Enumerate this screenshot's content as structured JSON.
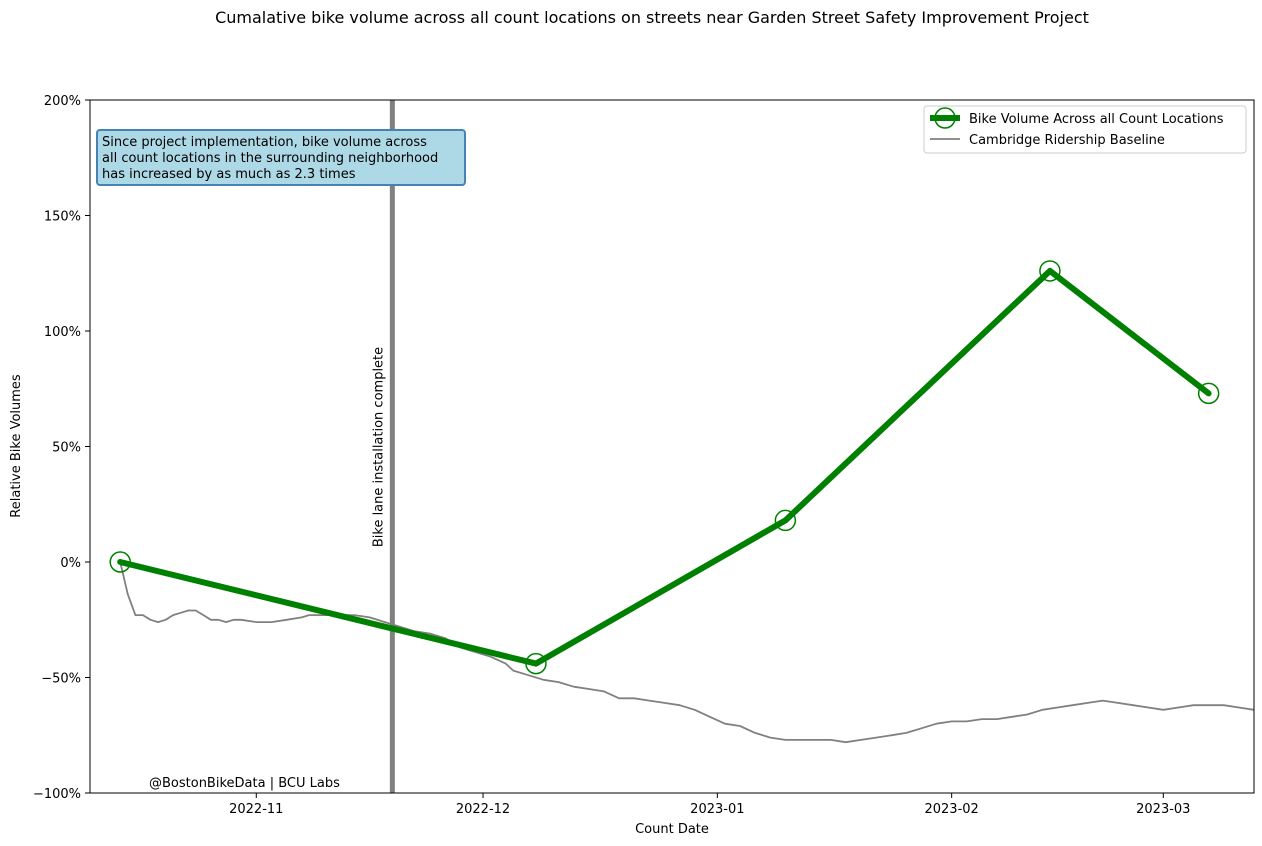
{
  "chart_data": {
    "type": "line",
    "title": "Cumalative bike volume across all count locations on streets near Garden Street Safety Improvement Project",
    "xlabel": "Count Date",
    "ylabel": "Relative Bike Volumes",
    "xlim": [
      "2022-10-10",
      "2023-03-13"
    ],
    "ylim": [
      -100,
      200
    ],
    "y_ticks": [
      -100,
      -50,
      0,
      50,
      100,
      150,
      200
    ],
    "y_tick_labels": [
      "−100%",
      "−50%",
      "0%",
      "50%",
      "100%",
      "150%",
      "200%"
    ],
    "x_ticks": [
      "2022-11-01",
      "2022-12-01",
      "2023-01-01",
      "2023-02-01",
      "2023-03-01"
    ],
    "x_tick_labels": [
      "2022-11",
      "2022-12",
      "2023-01",
      "2023-02",
      "2023-03"
    ],
    "legend_position": "top-right",
    "grid": false,
    "series": [
      {
        "name": "Bike Volume Across all Count Locations",
        "color": "#008000",
        "marker": "hollow-circle",
        "points": [
          {
            "x": "2022-10-14",
            "y": 0
          },
          {
            "x": "2022-12-08",
            "y": -44
          },
          {
            "x": "2023-01-10",
            "y": 18
          },
          {
            "x": "2023-02-14",
            "y": 126
          },
          {
            "x": "2023-03-07",
            "y": 73
          }
        ]
      },
      {
        "name": "Cambridge Ridership Baseline",
        "color": "#808080",
        "points": [
          {
            "x": "2022-10-14",
            "y": 0
          },
          {
            "x": "2022-10-15",
            "y": -14
          },
          {
            "x": "2022-10-16",
            "y": -23
          },
          {
            "x": "2022-10-17",
            "y": -23
          },
          {
            "x": "2022-10-18",
            "y": -25
          },
          {
            "x": "2022-10-19",
            "y": -26
          },
          {
            "x": "2022-10-20",
            "y": -25
          },
          {
            "x": "2022-10-21",
            "y": -23
          },
          {
            "x": "2022-10-22",
            "y": -22
          },
          {
            "x": "2022-10-23",
            "y": -21
          },
          {
            "x": "2022-10-24",
            "y": -21
          },
          {
            "x": "2022-10-25",
            "y": -23
          },
          {
            "x": "2022-10-26",
            "y": -25
          },
          {
            "x": "2022-10-27",
            "y": -25
          },
          {
            "x": "2022-10-28",
            "y": -26
          },
          {
            "x": "2022-10-29",
            "y": -25
          },
          {
            "x": "2022-10-30",
            "y": -25
          },
          {
            "x": "2022-11-01",
            "y": -26
          },
          {
            "x": "2022-11-03",
            "y": -26
          },
          {
            "x": "2022-11-05",
            "y": -25
          },
          {
            "x": "2022-11-07",
            "y": -24
          },
          {
            "x": "2022-11-08",
            "y": -23
          },
          {
            "x": "2022-11-10",
            "y": -23
          },
          {
            "x": "2022-11-12",
            "y": -23
          },
          {
            "x": "2022-11-14",
            "y": -23
          },
          {
            "x": "2022-11-16",
            "y": -24
          },
          {
            "x": "2022-11-18",
            "y": -26
          },
          {
            "x": "2022-11-20",
            "y": -28
          },
          {
            "x": "2022-11-22",
            "y": -30
          },
          {
            "x": "2022-11-24",
            "y": -31
          },
          {
            "x": "2022-11-26",
            "y": -33
          },
          {
            "x": "2022-11-28",
            "y": -37
          },
          {
            "x": "2022-11-30",
            "y": -39
          },
          {
            "x": "2022-12-02",
            "y": -41
          },
          {
            "x": "2022-12-04",
            "y": -44
          },
          {
            "x": "2022-12-05",
            "y": -47
          },
          {
            "x": "2022-12-07",
            "y": -49
          },
          {
            "x": "2022-12-09",
            "y": -51
          },
          {
            "x": "2022-12-11",
            "y": -52
          },
          {
            "x": "2022-12-13",
            "y": -54
          },
          {
            "x": "2022-12-15",
            "y": -55
          },
          {
            "x": "2022-12-17",
            "y": -56
          },
          {
            "x": "2022-12-19",
            "y": -59
          },
          {
            "x": "2022-12-21",
            "y": -59
          },
          {
            "x": "2022-12-23",
            "y": -60
          },
          {
            "x": "2022-12-25",
            "y": -61
          },
          {
            "x": "2022-12-27",
            "y": -62
          },
          {
            "x": "2022-12-29",
            "y": -64
          },
          {
            "x": "2022-12-31",
            "y": -67
          },
          {
            "x": "2023-01-02",
            "y": -70
          },
          {
            "x": "2023-01-04",
            "y": -71
          },
          {
            "x": "2023-01-06",
            "y": -74
          },
          {
            "x": "2023-01-08",
            "y": -76
          },
          {
            "x": "2023-01-10",
            "y": -77
          },
          {
            "x": "2023-01-12",
            "y": -77
          },
          {
            "x": "2023-01-14",
            "y": -77
          },
          {
            "x": "2023-01-16",
            "y": -77
          },
          {
            "x": "2023-01-18",
            "y": -78
          },
          {
            "x": "2023-01-20",
            "y": -77
          },
          {
            "x": "2023-01-22",
            "y": -76
          },
          {
            "x": "2023-01-24",
            "y": -75
          },
          {
            "x": "2023-01-26",
            "y": -74
          },
          {
            "x": "2023-01-28",
            "y": -72
          },
          {
            "x": "2023-01-30",
            "y": -70
          },
          {
            "x": "2023-02-01",
            "y": -69
          },
          {
            "x": "2023-02-03",
            "y": -69
          },
          {
            "x": "2023-02-05",
            "y": -68
          },
          {
            "x": "2023-02-07",
            "y": -68
          },
          {
            "x": "2023-02-09",
            "y": -67
          },
          {
            "x": "2023-02-11",
            "y": -66
          },
          {
            "x": "2023-02-13",
            "y": -64
          },
          {
            "x": "2023-02-15",
            "y": -63
          },
          {
            "x": "2023-02-17",
            "y": -62
          },
          {
            "x": "2023-02-19",
            "y": -61
          },
          {
            "x": "2023-02-21",
            "y": -60
          },
          {
            "x": "2023-02-23",
            "y": -61
          },
          {
            "x": "2023-02-25",
            "y": -62
          },
          {
            "x": "2023-02-27",
            "y": -63
          },
          {
            "x": "2023-03-01",
            "y": -64
          },
          {
            "x": "2023-03-03",
            "y": -63
          },
          {
            "x": "2023-03-05",
            "y": -62
          },
          {
            "x": "2023-03-07",
            "y": -62
          },
          {
            "x": "2023-03-09",
            "y": -62
          },
          {
            "x": "2023-03-11",
            "y": -63
          },
          {
            "x": "2023-03-13",
            "y": -64
          }
        ]
      }
    ],
    "vline": {
      "x": "2022-11-19",
      "label": "Bike lane installation complete",
      "color": "#808080"
    },
    "annotation": "Since project implementation, bike volume across\nall count locations in the surrounding neighborhood\nhas increased by as much as 2.3 times",
    "annotation_style": {
      "fill": "#add8e6",
      "stroke": "#4682b4"
    },
    "credit": "@BostonBikeData | BCU Labs"
  }
}
